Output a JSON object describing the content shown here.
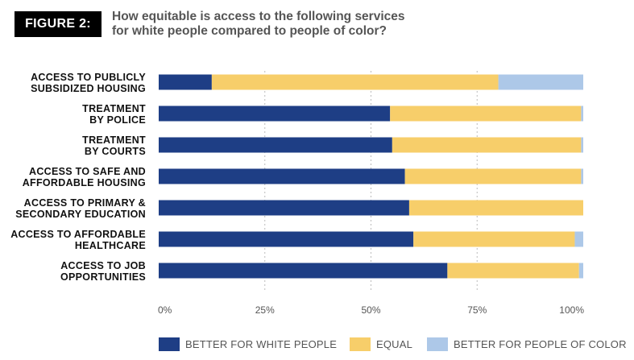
{
  "figure_label": "FIGURE 2:",
  "title_lines": [
    "How equitable is access to the following services",
    "for white people compared to people of color?"
  ],
  "colors": {
    "better_white": "#1e3e85",
    "equal": "#f7ce6a",
    "better_poc": "#adc8e8",
    "grid": "#bbbbbb",
    "label": "#111111",
    "tick": "#555555"
  },
  "chart_data": {
    "type": "bar",
    "orientation": "horizontal",
    "stacked": true,
    "categories": [
      [
        "ACCESS TO PUBLICLY",
        "SUBSIDIZED HOUSING"
      ],
      [
        "TREATMENT",
        "BY POLICE"
      ],
      [
        "TREATMENT",
        "BY COURTS"
      ],
      [
        "ACCESS TO SAFE AND",
        "AFFORDABLE HOUSING"
      ],
      [
        "ACCESS TO PRIMARY &",
        "SECONDARY EDUCATION"
      ],
      [
        "ACCESS TO AFFORDABLE",
        "HEALTHCARE"
      ],
      [
        "ACCESS TO JOB",
        "OPPORTUNITIES"
      ]
    ],
    "series": [
      {
        "name": "BETTER FOR WHITE PEOPLE",
        "values": [
          12.5,
          54.5,
          55.0,
          58.0,
          59.0,
          60.0,
          68.0
        ]
      },
      {
        "name": "EQUAL",
        "values": [
          67.5,
          45.0,
          44.5,
          41.5,
          41.0,
          38.0,
          31.0
        ]
      },
      {
        "name": "BETTER FOR PEOPLE OF COLOR",
        "values": [
          20.0,
          0.5,
          0.5,
          0.5,
          0.0,
          2.0,
          1.0
        ]
      }
    ],
    "xlim": [
      0,
      100
    ],
    "xticks": [
      "0%",
      "25%",
      "50%",
      "75%",
      "100%"
    ],
    "xtick_values": [
      0,
      25,
      50,
      75,
      100
    ],
    "grid": true,
    "legend_position": "bottom"
  }
}
